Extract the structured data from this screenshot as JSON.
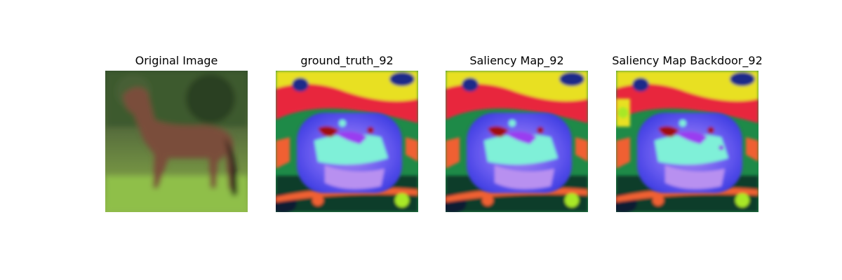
{
  "figure": {
    "panels": [
      {
        "title": "Original Image",
        "image": "horse-photo"
      },
      {
        "title": "ground_truth_92",
        "image": "saliency-heatmap"
      },
      {
        "title": "Saliency Map_92",
        "image": "saliency-heatmap"
      },
      {
        "title": "Saliency Map Backdoor_92",
        "image": "saliency-heatmap-backdoor"
      }
    ],
    "colors": {
      "grass": "#7faa3c",
      "horse": "#7a4e3a",
      "map_blue": "#4a5ee8",
      "map_cyan": "#7ff0d8",
      "map_red": "#e8283c",
      "map_yellow": "#e8e020",
      "map_green": "#1e8a48",
      "map_orange": "#f06030",
      "map_purple": "#9a3cf0"
    }
  }
}
